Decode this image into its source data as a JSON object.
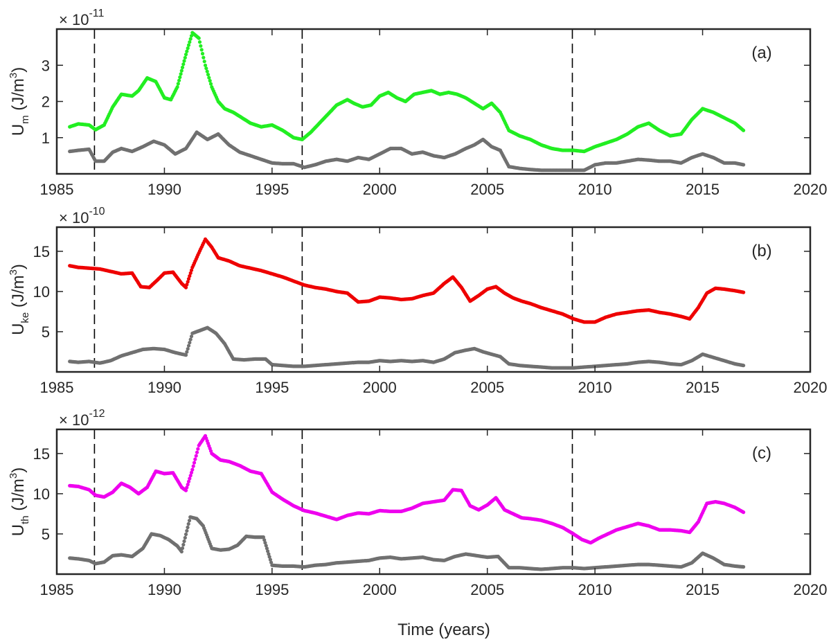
{
  "xlabel": "Time  (years)",
  "xlim": [
    1985,
    2020
  ],
  "xticks": [
    1985,
    1990,
    1995,
    2000,
    2005,
    2010,
    2015,
    2020
  ],
  "cycle_boundaries": [
    1986.75,
    1996.4,
    2008.95
  ],
  "panels": [
    {
      "label": "(a)",
      "ylabel_main": "U",
      "ylabel_sub": "m",
      "ylabel_units_pre": " (J/m",
      "ylabel_units_sup": "3",
      "ylabel_units_post": ")",
      "exponent_base": "× 10",
      "exponent": "-11",
      "ylim": [
        0,
        4
      ],
      "yticks": [
        1,
        2,
        3
      ],
      "colors": {
        "mean": "#22ee22",
        "std": "#707070"
      }
    },
    {
      "label": "(b)",
      "ylabel_main": "U",
      "ylabel_sub": "ke",
      "ylabel_units_pre": " (J/m",
      "ylabel_units_sup": "3",
      "ylabel_units_post": ")",
      "exponent_base": "× 10",
      "exponent": "-10",
      "ylim": [
        0,
        18
      ],
      "yticks": [
        5,
        10,
        15
      ],
      "colors": {
        "mean": "#ee0000",
        "std": "#707070"
      }
    },
    {
      "label": "(c)",
      "ylabel_main": "U",
      "ylabel_sub": "th",
      "ylabel_units_pre": " (J/m",
      "ylabel_units_sup": "3",
      "ylabel_units_post": ")",
      "exponent_base": "× 10",
      "exponent": "-12",
      "ylim": [
        0,
        18
      ],
      "yticks": [
        5,
        10,
        15
      ],
      "colors": {
        "mean": "#ee00ee",
        "std": "#707070"
      }
    }
  ],
  "chart_data": [
    {
      "type": "scatter",
      "title": "(a)",
      "xlabel": "",
      "ylabel": "Um (J/m3) × 10^-11",
      "xlim": [
        1985,
        2020
      ],
      "ylim": [
        0,
        4
      ],
      "series": [
        {
          "x": [
            1985.6,
            1986.0,
            1986.5,
            1986.8,
            1987.2,
            1987.6,
            1988.0,
            1988.5,
            1988.8,
            1989.2,
            1989.6,
            1990.0,
            1990.3,
            1990.6,
            1991.0,
            1991.3,
            1991.6,
            1991.9,
            1992.2,
            1992.5,
            1992.8,
            1993.2,
            1993.6,
            1994.0,
            1994.5,
            1995.0,
            1995.5,
            1996.0,
            1996.4,
            1996.8,
            1997.2,
            1997.6,
            1998.0,
            1998.5,
            1998.8,
            1999.2,
            1999.6,
            2000.0,
            2000.4,
            2000.8,
            2001.2,
            2001.6,
            2002.0,
            2002.4,
            2002.8,
            2003.2,
            2003.6,
            2004.0,
            2004.4,
            2004.8,
            2005.2,
            2005.6,
            2006.0,
            2006.5,
            2007.0,
            2007.5,
            2008.0,
            2008.5,
            2009.0,
            2009.5,
            2010.0,
            2010.5,
            2011.0,
            2011.5,
            2012.0,
            2012.5,
            2013.0,
            2013.5,
            2014.0,
            2014.5,
            2015.0,
            2015.5,
            2016.0,
            2016.5,
            2016.9
          ],
          "values": [
            1.3,
            1.38,
            1.35,
            1.22,
            1.35,
            1.85,
            2.2,
            2.15,
            2.3,
            2.65,
            2.55,
            2.1,
            2.05,
            2.4,
            3.3,
            3.9,
            3.75,
            3.0,
            2.4,
            2.0,
            1.8,
            1.7,
            1.55,
            1.4,
            1.3,
            1.35,
            1.2,
            1.0,
            0.95,
            1.15,
            1.4,
            1.65,
            1.9,
            2.05,
            1.95,
            1.85,
            1.9,
            2.15,
            2.25,
            2.1,
            2.0,
            2.2,
            2.25,
            2.3,
            2.2,
            2.25,
            2.2,
            2.1,
            1.95,
            1.8,
            1.95,
            1.7,
            1.2,
            1.05,
            0.95,
            0.8,
            0.7,
            0.65,
            0.65,
            0.62,
            0.75,
            0.85,
            0.95,
            1.1,
            1.3,
            1.4,
            1.2,
            1.05,
            1.1,
            1.5,
            1.8,
            1.7,
            1.55,
            1.4,
            1.2
          ]
        },
        {
          "x": [
            1985.6,
            1986.0,
            1986.5,
            1986.8,
            1987.2,
            1987.6,
            1988.0,
            1988.5,
            1989.0,
            1989.5,
            1990.0,
            1990.5,
            1991.0,
            1991.5,
            1992.0,
            1992.5,
            1993.0,
            1993.5,
            1994.0,
            1994.5,
            1995.0,
            1995.5,
            1996.0,
            1996.5,
            1997.0,
            1997.5,
            1998.0,
            1998.5,
            1999.0,
            1999.5,
            2000.0,
            2000.5,
            2001.0,
            2001.5,
            2002.0,
            2002.5,
            2003.0,
            2003.5,
            2004.0,
            2004.4,
            2004.8,
            2005.2,
            2005.6,
            2006.0,
            2006.5,
            2007.0,
            2007.5,
            2008.0,
            2008.5,
            2009.0,
            2009.5,
            2010.0,
            2010.5,
            2011.0,
            2011.5,
            2012.0,
            2012.5,
            2013.0,
            2013.5,
            2014.0,
            2014.5,
            2015.0,
            2015.5,
            2016.0,
            2016.5,
            2016.9
          ],
          "values": [
            0.62,
            0.65,
            0.68,
            0.35,
            0.35,
            0.6,
            0.7,
            0.62,
            0.75,
            0.9,
            0.8,
            0.55,
            0.7,
            1.15,
            0.95,
            1.1,
            0.8,
            0.6,
            0.5,
            0.4,
            0.3,
            0.28,
            0.28,
            0.18,
            0.25,
            0.35,
            0.4,
            0.35,
            0.45,
            0.4,
            0.55,
            0.7,
            0.7,
            0.55,
            0.6,
            0.5,
            0.45,
            0.55,
            0.7,
            0.8,
            0.95,
            0.75,
            0.65,
            0.2,
            0.15,
            0.12,
            0.1,
            0.1,
            0.1,
            0.1,
            0.1,
            0.25,
            0.3,
            0.3,
            0.35,
            0.4,
            0.38,
            0.35,
            0.35,
            0.3,
            0.45,
            0.55,
            0.45,
            0.3,
            0.3,
            0.25
          ]
        }
      ]
    },
    {
      "type": "scatter",
      "title": "(b)",
      "xlabel": "",
      "ylabel": "Uke (J/m3) × 10^-10",
      "xlim": [
        1985,
        2020
      ],
      "ylim": [
        0,
        18
      ],
      "series": [
        {
          "x": [
            1985.6,
            1986.0,
            1986.5,
            1987.0,
            1987.5,
            1988.0,
            1988.5,
            1988.9,
            1989.3,
            1989.7,
            1990.0,
            1990.4,
            1990.8,
            1991.0,
            1991.3,
            1991.6,
            1991.9,
            1992.2,
            1992.5,
            1993.0,
            1993.5,
            1994.0,
            1994.5,
            1995.0,
            1995.5,
            1996.0,
            1996.5,
            1997.0,
            1997.5,
            1998.0,
            1998.5,
            1999.0,
            1999.5,
            2000.0,
            2000.5,
            2001.0,
            2001.5,
            2002.0,
            2002.5,
            2003.0,
            2003.4,
            2003.8,
            2004.2,
            2004.6,
            2005.0,
            2005.4,
            2005.8,
            2006.2,
            2006.6,
            2007.0,
            2007.5,
            2008.0,
            2008.5,
            2009.0,
            2009.5,
            2010.0,
            2010.5,
            2011.0,
            2011.5,
            2012.0,
            2012.5,
            2013.0,
            2013.5,
            2014.0,
            2014.4,
            2014.8,
            2015.2,
            2015.6,
            2016.0,
            2016.5,
            2016.9
          ],
          "values": [
            13.2,
            13.0,
            12.9,
            12.8,
            12.5,
            12.2,
            12.3,
            10.6,
            10.5,
            11.5,
            12.3,
            12.4,
            11.0,
            10.5,
            13.0,
            14.8,
            16.5,
            15.5,
            14.2,
            13.8,
            13.2,
            12.9,
            12.6,
            12.2,
            11.8,
            11.3,
            10.8,
            10.5,
            10.3,
            10.0,
            9.8,
            8.7,
            8.8,
            9.3,
            9.2,
            9.0,
            9.1,
            9.5,
            9.8,
            11.0,
            11.8,
            10.5,
            8.8,
            9.5,
            10.3,
            10.6,
            9.8,
            9.2,
            8.8,
            8.5,
            8.0,
            7.6,
            7.2,
            6.6,
            6.2,
            6.2,
            6.8,
            7.2,
            7.4,
            7.6,
            7.7,
            7.4,
            7.2,
            6.9,
            6.6,
            8.0,
            9.8,
            10.4,
            10.3,
            10.1,
            9.9
          ]
        },
        {
          "x": [
            1985.6,
            1986.0,
            1986.5,
            1987.0,
            1987.5,
            1988.0,
            1988.5,
            1989.0,
            1989.5,
            1990.0,
            1990.5,
            1991.0,
            1991.3,
            1991.7,
            1992.0,
            1992.4,
            1992.8,
            1993.2,
            1993.7,
            1994.2,
            1994.7,
            1995.0,
            1995.5,
            1996.0,
            1996.5,
            1997.0,
            1997.5,
            1998.0,
            1998.5,
            1999.0,
            1999.5,
            2000.0,
            2000.5,
            2001.0,
            2001.5,
            2002.0,
            2002.5,
            2003.0,
            2003.5,
            2004.0,
            2004.4,
            2004.8,
            2005.2,
            2005.6,
            2006.0,
            2006.5,
            2007.0,
            2007.5,
            2008.0,
            2008.5,
            2009.0,
            2009.5,
            2010.0,
            2010.5,
            2011.0,
            2011.5,
            2012.0,
            2012.5,
            2013.0,
            2013.5,
            2014.0,
            2014.5,
            2015.0,
            2015.5,
            2016.0,
            2016.5,
            2016.9
          ],
          "values": [
            1.3,
            1.2,
            1.3,
            1.1,
            1.4,
            2.0,
            2.4,
            2.8,
            2.9,
            2.8,
            2.4,
            2.1,
            4.8,
            5.2,
            5.5,
            4.8,
            3.5,
            1.6,
            1.5,
            1.6,
            1.6,
            0.9,
            0.8,
            0.7,
            0.7,
            0.8,
            0.9,
            1.0,
            1.1,
            1.2,
            1.2,
            1.4,
            1.3,
            1.4,
            1.3,
            1.4,
            1.2,
            1.6,
            2.4,
            2.7,
            2.9,
            2.5,
            2.2,
            1.9,
            1.0,
            0.8,
            0.7,
            0.6,
            0.5,
            0.5,
            0.5,
            0.6,
            0.7,
            0.8,
            0.9,
            1.0,
            1.2,
            1.3,
            1.2,
            1.0,
            0.9,
            1.4,
            2.2,
            1.8,
            1.4,
            1.0,
            0.8
          ]
        }
      ]
    },
    {
      "type": "scatter",
      "title": "(c)",
      "xlabel": "Time  (years)",
      "ylabel": "Uth (J/m3) × 10^-12",
      "xlim": [
        1985,
        2020
      ],
      "ylim": [
        0,
        18
      ],
      "series": [
        {
          "x": [
            1985.6,
            1986.0,
            1986.5,
            1986.8,
            1987.2,
            1987.6,
            1988.0,
            1988.4,
            1988.8,
            1989.2,
            1989.6,
            1990.0,
            1990.4,
            1990.8,
            1991.0,
            1991.3,
            1991.6,
            1991.9,
            1992.2,
            1992.6,
            1993.0,
            1993.5,
            1994.0,
            1994.5,
            1995.0,
            1995.5,
            1996.0,
            1996.5,
            1997.0,
            1997.5,
            1998.0,
            1998.5,
            1999.0,
            1999.5,
            2000.0,
            2000.5,
            2001.0,
            2001.5,
            2002.0,
            2002.5,
            2003.0,
            2003.4,
            2003.8,
            2004.2,
            2004.6,
            2005.0,
            2005.4,
            2005.8,
            2006.2,
            2006.6,
            2007.0,
            2007.5,
            2008.0,
            2008.5,
            2009.0,
            2009.4,
            2009.8,
            2010.2,
            2010.6,
            2011.0,
            2011.5,
            2012.0,
            2012.5,
            2013.0,
            2013.5,
            2014.0,
            2014.4,
            2014.8,
            2015.2,
            2015.6,
            2016.0,
            2016.5,
            2016.9
          ],
          "values": [
            11.0,
            10.9,
            10.5,
            9.8,
            9.6,
            10.2,
            11.3,
            10.8,
            10.0,
            10.8,
            12.8,
            12.5,
            12.6,
            10.8,
            10.4,
            13.0,
            16.0,
            17.2,
            15.0,
            14.2,
            14.0,
            13.5,
            12.8,
            12.5,
            10.2,
            9.3,
            8.5,
            7.9,
            7.6,
            7.2,
            6.8,
            7.3,
            7.6,
            7.5,
            7.9,
            7.8,
            7.8,
            8.2,
            8.8,
            9.0,
            9.2,
            10.5,
            10.4,
            8.5,
            8.0,
            8.6,
            9.5,
            8.0,
            7.5,
            7.0,
            6.9,
            6.7,
            6.3,
            5.8,
            5.0,
            4.3,
            3.9,
            4.5,
            5.0,
            5.5,
            5.9,
            6.3,
            6.0,
            5.5,
            5.5,
            5.4,
            5.2,
            6.5,
            8.8,
            9.0,
            8.8,
            8.3,
            7.7
          ]
        },
        {
          "x": [
            1985.6,
            1986.0,
            1986.5,
            1986.8,
            1987.2,
            1987.6,
            1988.0,
            1988.5,
            1989.0,
            1989.4,
            1989.8,
            1990.2,
            1990.6,
            1990.8,
            1991.2,
            1991.5,
            1991.8,
            1992.2,
            1992.6,
            1993.0,
            1993.4,
            1993.8,
            1994.2,
            1994.6,
            1995.0,
            1995.5,
            1996.0,
            1996.5,
            1997.0,
            1997.5,
            1998.0,
            1998.5,
            1999.0,
            1999.5,
            2000.0,
            2000.5,
            2001.0,
            2001.5,
            2002.0,
            2002.5,
            2003.0,
            2003.5,
            2004.0,
            2004.5,
            2005.0,
            2005.5,
            2006.0,
            2006.5,
            2007.0,
            2007.5,
            2008.0,
            2008.5,
            2009.0,
            2009.5,
            2010.0,
            2010.5,
            2011.0,
            2011.5,
            2012.0,
            2012.5,
            2013.0,
            2013.5,
            2014.0,
            2014.5,
            2015.0,
            2015.5,
            2016.0,
            2016.5,
            2016.9
          ],
          "values": [
            2.0,
            1.9,
            1.7,
            1.3,
            1.5,
            2.3,
            2.4,
            2.2,
            3.2,
            5.0,
            4.8,
            4.3,
            3.5,
            2.8,
            7.1,
            6.9,
            6.0,
            3.2,
            3.0,
            3.1,
            3.6,
            4.7,
            4.6,
            4.6,
            1.1,
            1.0,
            1.0,
            0.9,
            1.1,
            1.2,
            1.4,
            1.5,
            1.6,
            1.7,
            2.0,
            2.1,
            1.9,
            2.0,
            2.1,
            1.8,
            1.7,
            2.2,
            2.5,
            2.3,
            2.1,
            2.2,
            0.8,
            0.8,
            0.7,
            0.6,
            0.7,
            0.8,
            0.8,
            0.7,
            0.8,
            0.9,
            1.0,
            1.1,
            1.2,
            1.2,
            1.1,
            1.0,
            0.9,
            1.4,
            2.6,
            2.0,
            1.2,
            1.0,
            0.9
          ]
        }
      ]
    }
  ]
}
